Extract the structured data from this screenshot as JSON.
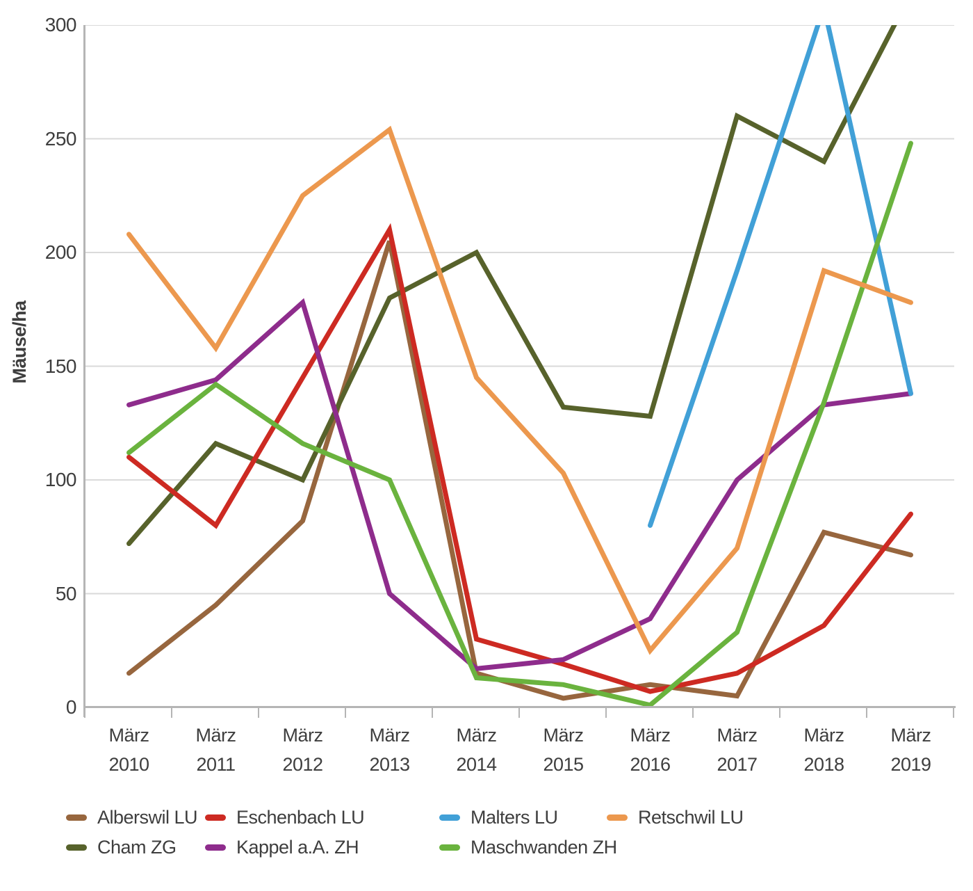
{
  "chart_data": {
    "type": "line",
    "title": "",
    "ylabel": "Mäuse/ha",
    "ylim": [
      0,
      300
    ],
    "ytick_step": 50,
    "y_tick_labels": [
      "0",
      "50",
      "100",
      "150",
      "200",
      "250",
      "300"
    ],
    "grid": true,
    "legend_position": "bottom",
    "categories": [
      {
        "month": "März",
        "year": "2010"
      },
      {
        "month": "März",
        "year": "2011"
      },
      {
        "month": "März",
        "year": "2012"
      },
      {
        "month": "März",
        "year": "2013"
      },
      {
        "month": "März",
        "year": "2014"
      },
      {
        "month": "März",
        "year": "2015"
      },
      {
        "month": "März",
        "year": "2016"
      },
      {
        "month": "März",
        "year": "2017"
      },
      {
        "month": "März",
        "year": "2018"
      },
      {
        "month": "März",
        "year": "2019"
      }
    ],
    "series": [
      {
        "name": "Alberswil LU",
        "color": "#97663E",
        "values": [
          15,
          45,
          82,
          205,
          15,
          4,
          10,
          5,
          77,
          67
        ]
      },
      {
        "name": "Cham ZG",
        "color": "#57622B",
        "values": [
          72,
          116,
          100,
          180,
          200,
          132,
          128,
          260,
          240,
          314
        ]
      },
      {
        "name": "Eschenbach LU",
        "color": "#CD2A22",
        "values": [
          110,
          80,
          145,
          210,
          30,
          19,
          7,
          15,
          36,
          85
        ]
      },
      {
        "name": "Kappel a.A. ZH",
        "color": "#8E2C8C",
        "values": [
          133,
          144,
          178,
          50,
          17,
          21,
          39,
          100,
          133,
          138
        ]
      },
      {
        "name": "Malters LU",
        "color": "#41A0D7",
        "values": [
          null,
          null,
          null,
          null,
          null,
          null,
          80,
          192,
          308,
          138
        ]
      },
      {
        "name": "Maschwanden ZH",
        "color": "#6AB33E",
        "values": [
          112,
          142,
          116,
          100,
          13,
          10,
          1,
          33,
          134,
          248
        ]
      },
      {
        "name": "Retschwil LU",
        "color": "#EC984E",
        "values": [
          208,
          158,
          225,
          254,
          145,
          103,
          25,
          70,
          192,
          178
        ]
      }
    ],
    "legend_rows": [
      [
        "Alberswil LU",
        "Eschenbach LU",
        "Malters LU",
        "Retschwil LU"
      ],
      [
        "Cham ZG",
        "Kappel a.A. ZH",
        "Maschwanden ZH"
      ]
    ]
  },
  "style": {
    "grid_color": "#DADADA",
    "axis_color": "#B5B5B5",
    "text_color": "#3E3E3E",
    "line_width": 7
  }
}
